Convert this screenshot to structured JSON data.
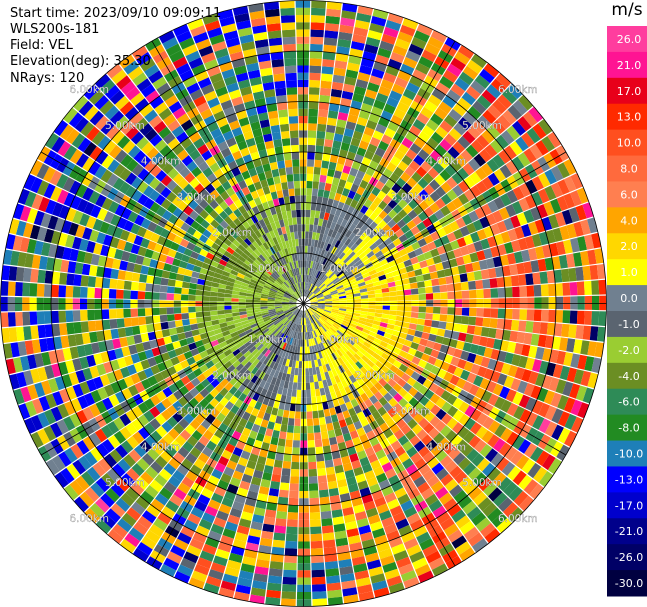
{
  "header": {
    "start_time": "Start time: 2023/09/10 09:09:11",
    "instrument": "WLS200s-181",
    "field": "Field: VEL",
    "elevation": "Elevation(deg): 35.30",
    "nrays": "NRays: 120"
  },
  "chart_data": {
    "type": "heatmap",
    "title": "",
    "projection": "polar-ppi",
    "field": "VEL",
    "n_rays": 120,
    "range_rings_km": [
      1,
      2,
      3,
      4,
      5,
      6
    ],
    "range_labels": [
      "1.00km",
      "2.00km",
      "3.00km",
      "4.00km",
      "5.00km",
      "6.00km"
    ],
    "max_range_km": 6.0,
    "colorbar": {
      "unit": "m/s",
      "range": [
        -30.0,
        30.0
      ],
      "tick_labels": [
        "26.0",
        "21.0",
        "17.0",
        "13.0",
        "10.0",
        "8.0",
        "6.0",
        "4.0",
        "2.0",
        "1.0",
        "0.0",
        "-1.0",
        "-2.0",
        "-4.0",
        "-6.0",
        "-8.0",
        "-10.0",
        "-13.0",
        "-17.0",
        "-21.0",
        "-26.0",
        "-30.0"
      ],
      "bins": [
        {
          "min": 26.0,
          "max": 30.0,
          "color": "#ff3d9e"
        },
        {
          "min": 21.0,
          "max": 26.0,
          "color": "#ff1493"
        },
        {
          "min": 17.0,
          "max": 21.0,
          "color": "#e8001a"
        },
        {
          "min": 13.0,
          "max": 17.0,
          "color": "#ff2a00"
        },
        {
          "min": 10.0,
          "max": 13.0,
          "color": "#ff4f1f"
        },
        {
          "min": 8.0,
          "max": 10.0,
          "color": "#ff6a3d"
        },
        {
          "min": 6.0,
          "max": 8.0,
          "color": "#ff7f50"
        },
        {
          "min": 4.0,
          "max": 6.0,
          "color": "#ffa500"
        },
        {
          "min": 2.0,
          "max": 4.0,
          "color": "#ffd700"
        },
        {
          "min": 1.0,
          "max": 2.0,
          "color": "#ffff00"
        },
        {
          "min": 0.0,
          "max": 1.0,
          "color": "#708090"
        },
        {
          "min": -1.0,
          "max": 0.0,
          "color": "#5a6470"
        },
        {
          "min": -2.0,
          "max": -1.0,
          "color": "#9acd32"
        },
        {
          "min": -4.0,
          "max": -2.0,
          "color": "#6b8e23"
        },
        {
          "min": -6.0,
          "max": -4.0,
          "color": "#2e8b57"
        },
        {
          "min": -8.0,
          "max": -6.0,
          "color": "#228b22"
        },
        {
          "min": -10.0,
          "max": -8.0,
          "color": "#1e7fb8"
        },
        {
          "min": -13.0,
          "max": -10.0,
          "color": "#0000ff"
        },
        {
          "min": -17.0,
          "max": -13.0,
          "color": "#0000cd"
        },
        {
          "min": -21.0,
          "max": -17.0,
          "color": "#00008b"
        },
        {
          "min": -26.0,
          "max": -21.0,
          "color": "#000066"
        },
        {
          "min": -30.0,
          "max": -26.0,
          "color": "#000040"
        }
      ]
    }
  }
}
